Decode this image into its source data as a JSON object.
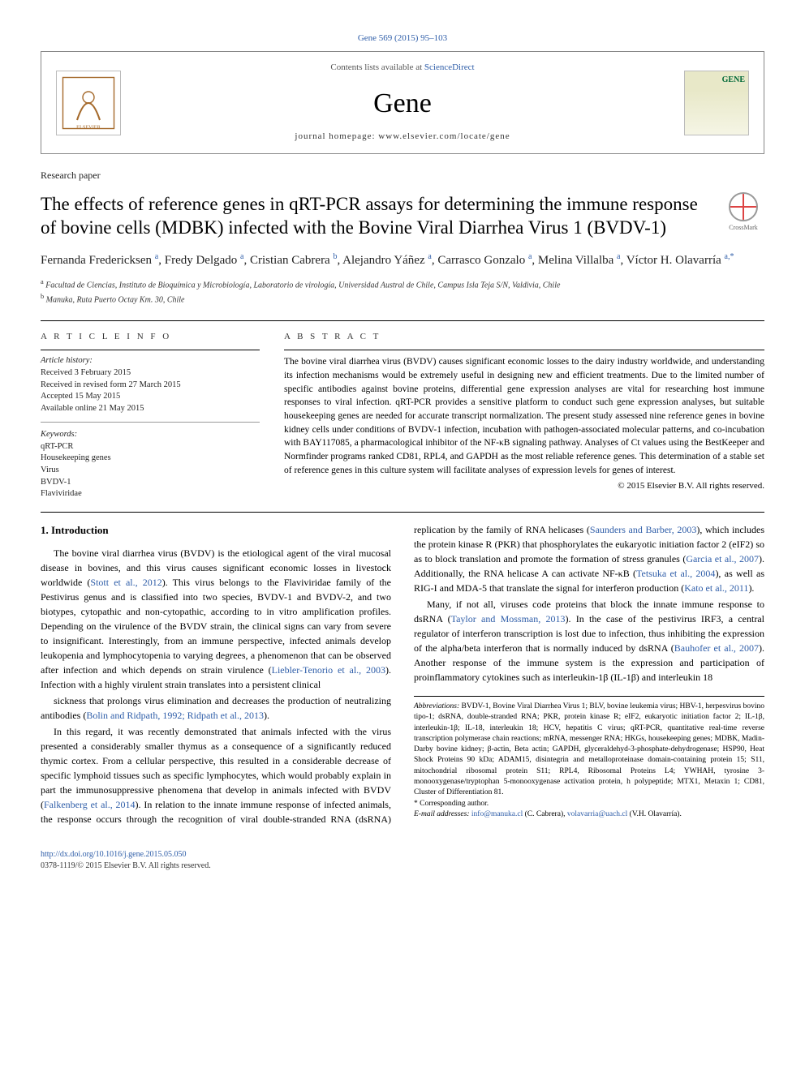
{
  "header": {
    "citation": "Gene 569 (2015) 95–103",
    "avail_prefix": "Contents lists available at ",
    "avail_link": "ScienceDirect",
    "journal": "Gene",
    "homepage": "journal homepage: www.elsevier.com/locate/gene",
    "gene_logo_text": "GENE"
  },
  "article_type": "Research paper",
  "title": "The effects of reference genes in qRT-PCR assays for determining the immune response of bovine cells (MDBK) infected with the Bovine Viral Diarrhea Virus 1 (BVDV-1)",
  "crossmark": "CrossMark",
  "authors_html": "Fernanda Fredericksen <sup>a</sup>, Fredy Delgado <sup>a</sup>, Cristian Cabrera <sup>b</sup>, Alejandro Yáñez <sup>a</sup>, Carrasco Gonzalo <sup>a</sup>, Melina Villalba <sup>a</sup>, Víctor H. Olavarría <sup>a,*</sup>",
  "affiliations": [
    "a  Facultad de Ciencias, Instituto de Bioquímica y Microbiología, Laboratorio de virología, Universidad Austral de Chile, Campus Isla Teja S/N, Valdivia, Chile",
    "b  Manuka, Ruta Puerto Octay Km. 30, Chile"
  ],
  "info": {
    "head": "A R T I C L E   I N F O",
    "history_label": "Article history:",
    "history": [
      "Received 3 February 2015",
      "Received in revised form 27 March 2015",
      "Accepted 15 May 2015",
      "Available online 21 May 2015"
    ],
    "keywords_label": "Keywords:",
    "keywords": [
      "qRT-PCR",
      "Housekeeping genes",
      "Virus",
      "BVDV-1",
      "Flaviviridae"
    ]
  },
  "abstract": {
    "head": "A B S T R A C T",
    "text": "The bovine viral diarrhea virus (BVDV) causes significant economic losses to the dairy industry worldwide, and understanding its infection mechanisms would be extremely useful in designing new and efficient treatments. Due to the limited number of specific antibodies against bovine proteins, differential gene expression analyses are vital for researching host immune responses to viral infection. qRT-PCR provides a sensitive platform to conduct such gene expression analyses, but suitable housekeeping genes are needed for accurate transcript normalization. The present study assessed nine reference genes in bovine kidney cells under conditions of BVDV-1 infection, incubation with pathogen-associated molecular patterns, and co-incubation with BAY117085, a pharmacological inhibitor of the NF-κB signaling pathway. Analyses of Ct values using the BestKeeper and Normfinder programs ranked CD81, RPL4, and GAPDH as the most reliable reference genes. This determination of a stable set of reference genes in this culture system will facilitate analyses of expression levels for genes of interest.",
    "copyright": "© 2015 Elsevier B.V. All rights reserved."
  },
  "intro_head": "1. Introduction",
  "intro_paragraphs": [
    "The bovine viral diarrhea virus (BVDV) is the etiological agent of the viral mucosal disease in bovines, and this virus causes significant economic losses in livestock worldwide (<a>Stott et al., 2012</a>). This virus belongs to the Flaviviridae family of the Pestivirus genus and is classified into two species, BVDV-1 and BVDV-2, and two biotypes, cytopathic and non-cytopathic, according to in vitro amplification profiles. Depending on the virulence of the BVDV strain, the clinical signs can vary from severe to insignificant. Interestingly, from an immune perspective, infected animals develop leukopenia and lymphocytopenia to varying degrees, a phenomenon that can be observed after infection and which depends on strain virulence (<a>Liebler-Tenorio et al., 2003</a>). Infection with a highly virulent strain translates into a persistent clinical",
    "sickness that prolongs virus elimination and decreases the production of neutralizing antibodies (<a>Bolin and Ridpath, 1992; Ridpath et al., 2013</a>).",
    "In this regard, it was recently demonstrated that animals infected with the virus presented a considerably smaller thymus as a consequence of a significantly reduced thymic cortex. From a cellular perspective, this resulted in a considerable decrease of specific lymphoid tissues such as specific lymphocytes, which would probably explain in part the immunosuppressive phenomena that develop in animals infected with BVDV (<a>Falkenberg et al., 2014</a>). In relation to the innate immune response of infected animals, the response occurs through the recognition of viral double-stranded RNA (dsRNA) replication by the family of RNA helicases (<a>Saunders and Barber, 2003</a>), which includes the protein kinase R (PKR) that phosphorylates the eukaryotic initiation factor 2 (eIF2) so as to block translation and promote the formation of stress granules (<a>Garcia et al., 2007</a>). Additionally, the RNA helicase A can activate NF-κB (<a>Tetsuka et al., 2004</a>), as well as RIG-I and MDA-5 that translate the signal for interferon production (<a>Kato et al., 2011</a>).",
    "Many, if not all, viruses code proteins that block the innate immune response to dsRNA (<a>Taylor and Mossman, 2013</a>). In the case of the pestivirus IRF3, a central regulator of interferon transcription is lost due to infection, thus inhibiting the expression of the alpha/beta interferon that is normally induced by dsRNA (<a>Bauhofer et al., 2007</a>). Another response of the immune system is the expression and participation of proinflammatory cytokines such as interleukin-1β (IL-1β) and interleukin 18"
  ],
  "footnotes": {
    "abbrev_label": "Abbreviations:",
    "abbrev_text": " BVDV-1, Bovine Viral Diarrhea Virus 1; BLV, bovine leukemia virus; HBV-1, herpesvirus bovino tipo-1; dsRNA, double-stranded RNA; PKR, protein kinase R; eIF2, eukaryotic initiation factor 2; IL-1β, interleukin-1β; IL-18, interleukin 18; HCV, hepatitis C virus; qRT-PCR, quantitative real-time reverse transcription polymerase chain reactions; mRNA, messenger RNA; HKGs, housekeeping genes; MDBK, Madin-Darby bovine kidney; β-actin, Beta actin; GAPDH, glyceraldehyd-3-phosphate-dehydrogenase; HSP90, Heat Shock Proteins 90 kDa; ADAM15, disintegrin and metalloproteinase domain-containing protein 15; S11, mitochondrial ribosomal protein S11; RPL4, Ribosomal Proteins L4; YWHAH, tyrosine 3-monooxygenase/tryptophan 5-monooxygenase activation protein, h polypeptide; MTX1, Metaxin 1; CD81, Cluster of Differentiation 81.",
    "corr": "* Corresponding author.",
    "email_label": "E-mail addresses:",
    "emails_html": " <a>info@manuka.cl</a> (C. Cabrera), <a>volavarria@uach.cl</a> (V.H. Olavarría)."
  },
  "footer": {
    "doi": "http://dx.doi.org/10.1016/j.gene.2015.05.050",
    "copyright": "0378-1119/© 2015 Elsevier B.V. All rights reserved."
  },
  "colors": {
    "link": "#2e5da8",
    "text": "#000000"
  },
  "fonts": {
    "title_size": 23,
    "body_size": 12,
    "abstract_size": 11.5
  }
}
